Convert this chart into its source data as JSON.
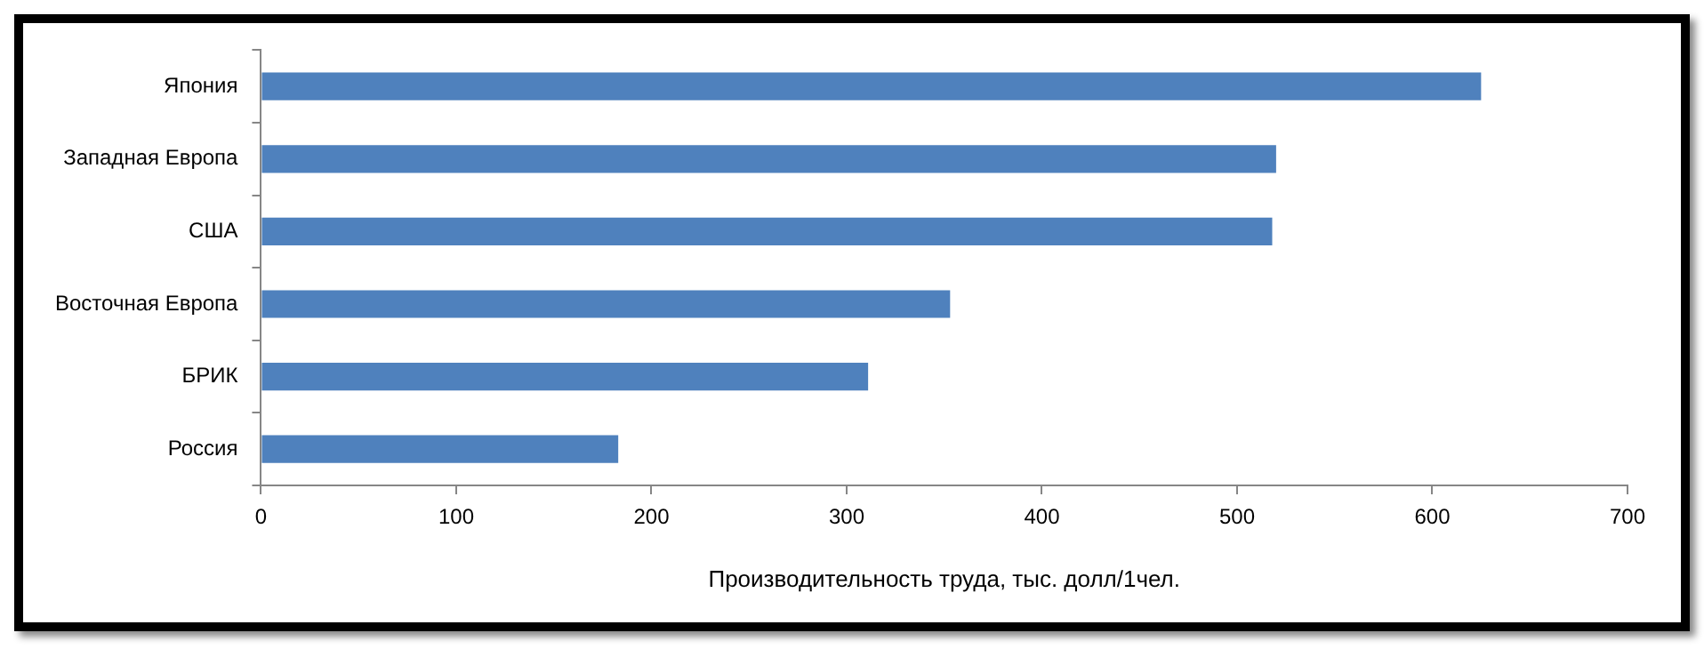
{
  "chart_data": {
    "type": "bar",
    "orientation": "horizontal",
    "xlabel": "Производительность труда, тыс. долл/1чел.",
    "categories": [
      "Япония",
      "Западная Европа",
      "США",
      "Восточная Европа",
      "БРИК",
      "Россия"
    ],
    "values": [
      625,
      520,
      518,
      353,
      311,
      183
    ],
    "color": "#4f81bd",
    "xlim": [
      0,
      700
    ],
    "xticks": [
      0,
      100,
      200,
      300,
      400,
      500,
      600,
      700
    ],
    "grid": false,
    "legend": false
  }
}
